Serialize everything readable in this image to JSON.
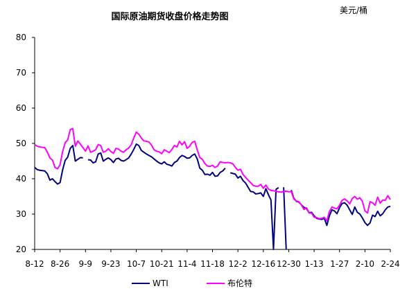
{
  "chart_data": {
    "type": "line",
    "title": "国际原油期货收盘价格走势图",
    "unit_label": "美元/桶",
    "xlabel": "",
    "ylabel": "",
    "ylim": [
      20,
      80
    ],
    "yticks": [
      20,
      30,
      40,
      50,
      60,
      70,
      80
    ],
    "grid": false,
    "legend_position": "bottom",
    "x_tick_labels": [
      "8-12",
      "8-26",
      "9-9",
      "9-23",
      "10-7",
      "10-21",
      "11-4",
      "11-18",
      "12-2",
      "12-16",
      "12-30",
      "1-13",
      "1-27",
      "2-10",
      "2-24"
    ],
    "x_tick_index": [
      0,
      10,
      20,
      30,
      40,
      50,
      60,
      70,
      80,
      90,
      100,
      110,
      120,
      130,
      140
    ],
    "x_max_index": 140,
    "series": [
      {
        "name": "WTI",
        "color": "#000080",
        "points": [
          [
            0,
            43.2
          ],
          [
            1,
            42.6
          ],
          [
            2,
            42.4
          ],
          [
            3,
            42.3
          ],
          [
            4,
            42.2
          ],
          [
            5,
            41.4
          ],
          [
            6,
            39.6
          ],
          [
            7,
            40.0
          ],
          [
            8,
            39.2
          ],
          [
            9,
            38.5
          ],
          [
            10,
            38.9
          ],
          [
            11,
            42.5
          ],
          [
            12,
            45.2
          ],
          [
            13,
            46.1
          ],
          [
            14,
            48.6
          ],
          [
            15,
            49.4
          ],
          [
            16,
            45.0
          ],
          [
            17,
            45.5
          ],
          [
            18,
            46.0
          ],
          [
            19,
            45.9
          ],
          [
            21,
            45.4
          ],
          [
            22,
            45.3
          ],
          [
            23,
            44.5
          ],
          [
            24,
            44.8
          ],
          [
            25,
            47.0
          ],
          [
            26,
            47.3
          ],
          [
            27,
            45.0
          ],
          [
            28,
            45.5
          ],
          [
            29,
            45.9
          ],
          [
            30,
            45.4
          ],
          [
            31,
            44.6
          ],
          [
            32,
            45.6
          ],
          [
            33,
            45.8
          ],
          [
            34,
            45.2
          ],
          [
            35,
            45.0
          ],
          [
            36,
            45.4
          ],
          [
            37,
            45.9
          ],
          [
            38,
            47.0
          ],
          [
            39,
            48.3
          ],
          [
            40,
            49.8
          ],
          [
            41,
            49.4
          ],
          [
            42,
            48.0
          ],
          [
            43,
            47.5
          ],
          [
            44,
            47.0
          ],
          [
            45,
            46.6
          ],
          [
            46,
            46.2
          ],
          [
            47,
            45.6
          ],
          [
            48,
            45.0
          ],
          [
            49,
            44.5
          ],
          [
            50,
            44.2
          ],
          [
            51,
            44.8
          ],
          [
            52,
            44.1
          ],
          [
            53,
            43.9
          ],
          [
            54,
            43.6
          ],
          [
            55,
            44.6
          ],
          [
            56,
            45.0
          ],
          [
            57,
            46.0
          ],
          [
            58,
            46.6
          ],
          [
            59,
            46.3
          ],
          [
            60,
            45.8
          ],
          [
            61,
            45.9
          ],
          [
            62,
            46.6
          ],
          [
            63,
            47.0
          ],
          [
            64,
            45.6
          ],
          [
            65,
            43.0
          ],
          [
            66,
            42.4
          ],
          [
            67,
            41.2
          ],
          [
            68,
            41.3
          ],
          [
            69,
            41.0
          ],
          [
            70,
            41.8
          ],
          [
            71,
            40.7
          ],
          [
            72,
            40.8
          ],
          [
            73,
            41.8
          ],
          [
            74,
            42.2
          ],
          [
            75,
            43.0
          ],
          [
            77,
            41.7
          ],
          [
            78,
            41.5
          ],
          [
            79,
            41.3
          ],
          [
            80,
            40.2
          ],
          [
            81,
            40.7
          ],
          [
            82,
            39.5
          ],
          [
            83,
            38.8
          ],
          [
            84,
            37.6
          ],
          [
            85,
            36.4
          ],
          [
            86,
            36.3
          ],
          [
            87,
            35.7
          ],
          [
            88,
            35.8
          ],
          [
            89,
            36.0
          ],
          [
            90,
            35.0
          ],
          [
            91,
            37.2
          ],
          [
            92,
            35.5
          ],
          [
            93,
            34.0
          ],
          [
            94,
            20.0
          ],
          [
            95,
            37.0
          ],
          [
            96,
            37.5
          ],
          [
            98,
            37.6
          ],
          [
            99,
            20.0
          ],
          [
            101,
            36.8
          ],
          [
            102,
            34.5
          ],
          [
            103,
            33.6
          ],
          [
            104,
            33.4
          ],
          [
            105,
            32.6
          ],
          [
            106,
            31.9
          ],
          [
            107,
            31.5
          ],
          [
            108,
            30.4
          ],
          [
            109,
            30.5
          ],
          [
            110,
            29.5
          ],
          [
            111,
            28.8
          ],
          [
            112,
            28.6
          ],
          [
            113,
            28.5
          ],
          [
            114,
            28.8
          ],
          [
            115,
            26.8
          ],
          [
            116,
            29.5
          ],
          [
            117,
            31.2
          ],
          [
            118,
            30.9
          ],
          [
            119,
            30.1
          ],
          [
            120,
            31.8
          ],
          [
            121,
            33.0
          ],
          [
            122,
            33.2
          ],
          [
            123,
            32.5
          ],
          [
            124,
            31.2
          ],
          [
            125,
            29.9
          ],
          [
            126,
            32.0
          ],
          [
            127,
            30.5
          ],
          [
            128,
            30.0
          ],
          [
            129,
            28.9
          ],
          [
            130,
            27.6
          ],
          [
            131,
            26.8
          ],
          [
            132,
            27.5
          ],
          [
            133,
            29.7
          ],
          [
            134,
            29.3
          ],
          [
            135,
            30.8
          ],
          [
            136,
            29.5
          ],
          [
            137,
            30.1
          ],
          [
            138,
            31.2
          ],
          [
            139,
            32.0
          ],
          [
            140,
            32.2
          ]
        ]
      },
      {
        "name": "布伦特",
        "color": "#ff00ff",
        "points": [
          [
            0,
            49.7
          ],
          [
            1,
            49.2
          ],
          [
            2,
            49.0
          ],
          [
            3,
            48.9
          ],
          [
            4,
            48.8
          ],
          [
            5,
            47.5
          ],
          [
            6,
            45.9
          ],
          [
            7,
            45.3
          ],
          [
            8,
            43.2
          ],
          [
            9,
            42.8
          ],
          [
            10,
            44.0
          ],
          [
            11,
            47.7
          ],
          [
            12,
            50.2
          ],
          [
            13,
            51.0
          ],
          [
            14,
            53.9
          ],
          [
            15,
            54.2
          ],
          [
            16,
            49.2
          ],
          [
            17,
            50.7
          ],
          [
            18,
            49.8
          ],
          [
            19,
            48.8
          ],
          [
            20,
            47.8
          ],
          [
            21,
            49.3
          ],
          [
            22,
            47.5
          ],
          [
            23,
            47.8
          ],
          [
            24,
            48.2
          ],
          [
            25,
            49.7
          ],
          [
            26,
            49.4
          ],
          [
            27,
            47.5
          ],
          [
            28,
            47.8
          ],
          [
            29,
            48.5
          ],
          [
            30,
            47.7
          ],
          [
            31,
            47.2
          ],
          [
            32,
            48.6
          ],
          [
            33,
            48.4
          ],
          [
            34,
            47.8
          ],
          [
            35,
            47.5
          ],
          [
            36,
            48.2
          ],
          [
            37,
            48.7
          ],
          [
            38,
            49.6
          ],
          [
            39,
            51.5
          ],
          [
            40,
            53.2
          ],
          [
            41,
            52.6
          ],
          [
            42,
            51.5
          ],
          [
            43,
            50.7
          ],
          [
            44,
            50.6
          ],
          [
            45,
            50.4
          ],
          [
            46,
            49.5
          ],
          [
            47,
            48.2
          ],
          [
            48,
            47.8
          ],
          [
            49,
            47.6
          ],
          [
            50,
            47.1
          ],
          [
            51,
            48.2
          ],
          [
            52,
            47.8
          ],
          [
            53,
            47.4
          ],
          [
            54,
            48.3
          ],
          [
            55,
            49.4
          ],
          [
            56,
            49.0
          ],
          [
            57,
            50.6
          ],
          [
            58,
            49.6
          ],
          [
            59,
            50.5
          ],
          [
            60,
            48.6
          ],
          [
            61,
            49.2
          ],
          [
            62,
            50.3
          ],
          [
            63,
            50.6
          ],
          [
            64,
            48.2
          ],
          [
            65,
            46.0
          ],
          [
            66,
            45.5
          ],
          [
            67,
            44.3
          ],
          [
            68,
            43.6
          ],
          [
            69,
            43.5
          ],
          [
            70,
            43.8
          ],
          [
            71,
            43.2
          ],
          [
            72,
            43.6
          ],
          [
            73,
            44.8
          ],
          [
            74,
            44.6
          ],
          [
            75,
            44.5
          ],
          [
            76,
            44.6
          ],
          [
            77,
            44.5
          ],
          [
            78,
            44.2
          ],
          [
            79,
            43.2
          ],
          [
            80,
            42.4
          ],
          [
            81,
            42.7
          ],
          [
            82,
            41.2
          ],
          [
            83,
            40.4
          ],
          [
            84,
            39.6
          ],
          [
            85,
            38.9
          ],
          [
            86,
            38.1
          ],
          [
            87,
            37.9
          ],
          [
            88,
            37.9
          ],
          [
            89,
            38.4
          ],
          [
            90,
            37.3
          ],
          [
            91,
            38.2
          ],
          [
            92,
            37.1
          ],
          [
            93,
            36.7
          ],
          [
            94,
            36.6
          ],
          [
            95,
            36.5
          ],
          [
            96,
            36.3
          ],
          [
            97,
            36.2
          ],
          [
            98,
            36.4
          ],
          [
            99,
            36.5
          ],
          [
            100,
            36.3
          ],
          [
            101,
            36.4
          ],
          [
            102,
            34.3
          ],
          [
            103,
            33.7
          ],
          [
            104,
            33.5
          ],
          [
            105,
            32.6
          ],
          [
            106,
            31.3
          ],
          [
            107,
            31.8
          ],
          [
            108,
            30.3
          ],
          [
            109,
            30.3
          ],
          [
            110,
            29.1
          ],
          [
            111,
            29.0
          ],
          [
            112,
            28.7
          ],
          [
            113,
            28.8
          ],
          [
            114,
            29.1
          ],
          [
            115,
            28.1
          ],
          [
            116,
            30.7
          ],
          [
            117,
            32.0
          ],
          [
            118,
            31.7
          ],
          [
            119,
            31.5
          ],
          [
            120,
            32.5
          ],
          [
            121,
            33.9
          ],
          [
            122,
            34.3
          ],
          [
            123,
            33.7
          ],
          [
            124,
            32.9
          ],
          [
            125,
            34.4
          ],
          [
            126,
            35.0
          ],
          [
            127,
            34.2
          ],
          [
            128,
            34.6
          ],
          [
            129,
            33.6
          ],
          [
            130,
            30.9
          ],
          [
            131,
            30.3
          ],
          [
            132,
            33.5
          ],
          [
            133,
            33.2
          ],
          [
            134,
            32.5
          ],
          [
            135,
            34.8
          ],
          [
            136,
            33.1
          ],
          [
            137,
            34.0
          ],
          [
            138,
            33.9
          ],
          [
            139,
            35.2
          ],
          [
            140,
            34.1
          ]
        ]
      }
    ]
  }
}
